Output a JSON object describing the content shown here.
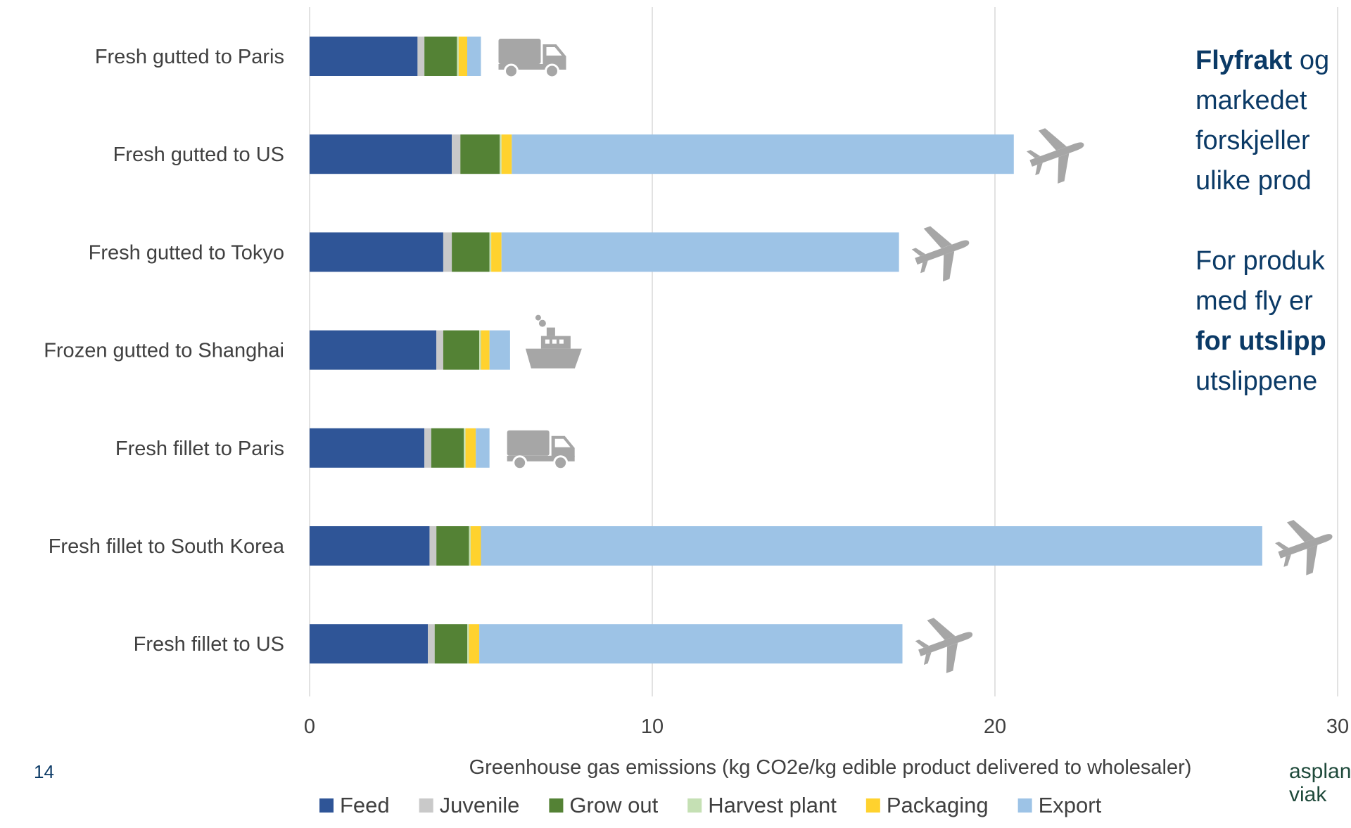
{
  "chart_data": {
    "type": "bar",
    "orientation": "horizontal",
    "stacked": true,
    "categories": [
      "Fresh gutted to Paris",
      "Fresh gutted to US",
      "Fresh gutted to Tokyo",
      "Frozen gutted to Shanghai",
      "Fresh fillet to Paris",
      "Fresh fillet to South Korea",
      "Fresh fillet to US"
    ],
    "series": [
      {
        "name": "Feed",
        "color": "#2f5597",
        "values": [
          3.15,
          4.15,
          3.9,
          3.7,
          3.35,
          3.5,
          3.45
        ]
      },
      {
        "name": "Juvenile",
        "color": "#c9c9c9",
        "values": [
          0.2,
          0.25,
          0.25,
          0.2,
          0.2,
          0.2,
          0.2
        ]
      },
      {
        "name": "Grow out",
        "color": "#548235",
        "values": [
          0.95,
          1.15,
          1.1,
          1.05,
          0.95,
          0.95,
          0.95
        ]
      },
      {
        "name": "Harvest plant",
        "color": "#c5e0b4",
        "values": [
          0.05,
          0.05,
          0.05,
          0.05,
          0.05,
          0.05,
          0.05
        ]
      },
      {
        "name": "Packaging",
        "color": "#ffd22e",
        "values": [
          0.25,
          0.3,
          0.3,
          0.25,
          0.3,
          0.3,
          0.3
        ]
      },
      {
        "name": "Export",
        "color": "#9dc3e6",
        "values": [
          0.4,
          14.65,
          11.6,
          0.6,
          0.4,
          22.8,
          12.35
        ]
      }
    ],
    "transport_icons": [
      "truck-icon",
      "airplane-icon",
      "airplane-icon",
      "ship-icon",
      "truck-icon",
      "airplane-icon",
      "airplane-icon"
    ],
    "x_ticks": [
      "0",
      "10",
      "20",
      "30"
    ],
    "xlim": [
      0,
      30
    ],
    "xlabel": "Greenhouse gas emissions (kg CO2e/kg edible product delivered to wholesaler)",
    "ylabel": "",
    "title": "",
    "grid": "vertical",
    "legend_position": "bottom"
  },
  "side_text": {
    "line1_bold": "Flyfrakt",
    "line1_rest": " og",
    "line2": "markedet",
    "line3": "forskjeller",
    "line4": "ulike prod",
    "line5": "For produk",
    "line6": "med fly er",
    "line7_bold": "for utslipp",
    "line8": "utslippene"
  },
  "page_number": "14",
  "logo": {
    "line1": "asplan",
    "line2": "viak"
  },
  "colors": {
    "icon": "#a6a6a6",
    "text_accent": "#0b3a66",
    "grid": "#d9d9d9"
  }
}
